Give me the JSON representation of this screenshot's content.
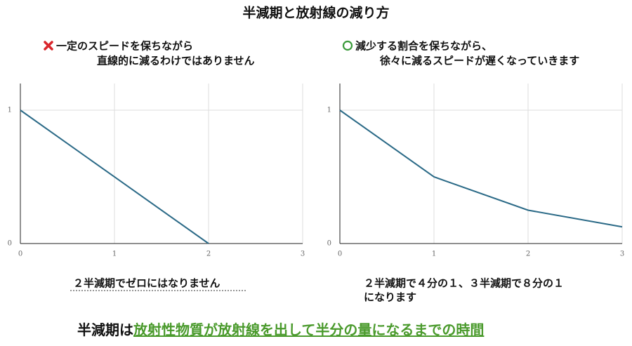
{
  "title": "半減期と放射線の減り方",
  "left_note": {
    "lines": [
      "一定のスピードを保ちながら",
      "直線的に減るわけではありません"
    ]
  },
  "right_note": {
    "lines": [
      "減少する割合を保ちながら、",
      "徐々に減るスピードが遅くなっていきます"
    ]
  },
  "chart_data": [
    {
      "type": "line",
      "x": [
        0,
        2
      ],
      "series": [
        {
          "color": "#2b6a87",
          "values": [
            1,
            0
          ]
        }
      ],
      "xlim": [
        0,
        3
      ],
      "xticks": [
        0,
        1,
        2,
        3
      ],
      "ylim": [
        0,
        1.2
      ],
      "yticks": [
        0,
        1
      ],
      "grid": true,
      "caption": [
        "２半減期でゼロにはなりません"
      ]
    },
    {
      "type": "line",
      "x": [
        0,
        1,
        2,
        3
      ],
      "series": [
        {
          "color": "#2b6a87",
          "values": [
            1,
            0.5,
            0.25,
            0.125
          ]
        }
      ],
      "xlim": [
        0,
        3
      ],
      "xticks": [
        0,
        1,
        2,
        3
      ],
      "ylim": [
        0,
        1.2
      ],
      "yticks": [
        0,
        1
      ],
      "grid": true,
      "caption": [
        "２半減期で４分の１、３半減期で８分の１",
        "になります"
      ]
    }
  ],
  "definition": {
    "term": "半減期は",
    "meaning": "放射性物質が放射線を出して半分の量になるまでの時間"
  }
}
